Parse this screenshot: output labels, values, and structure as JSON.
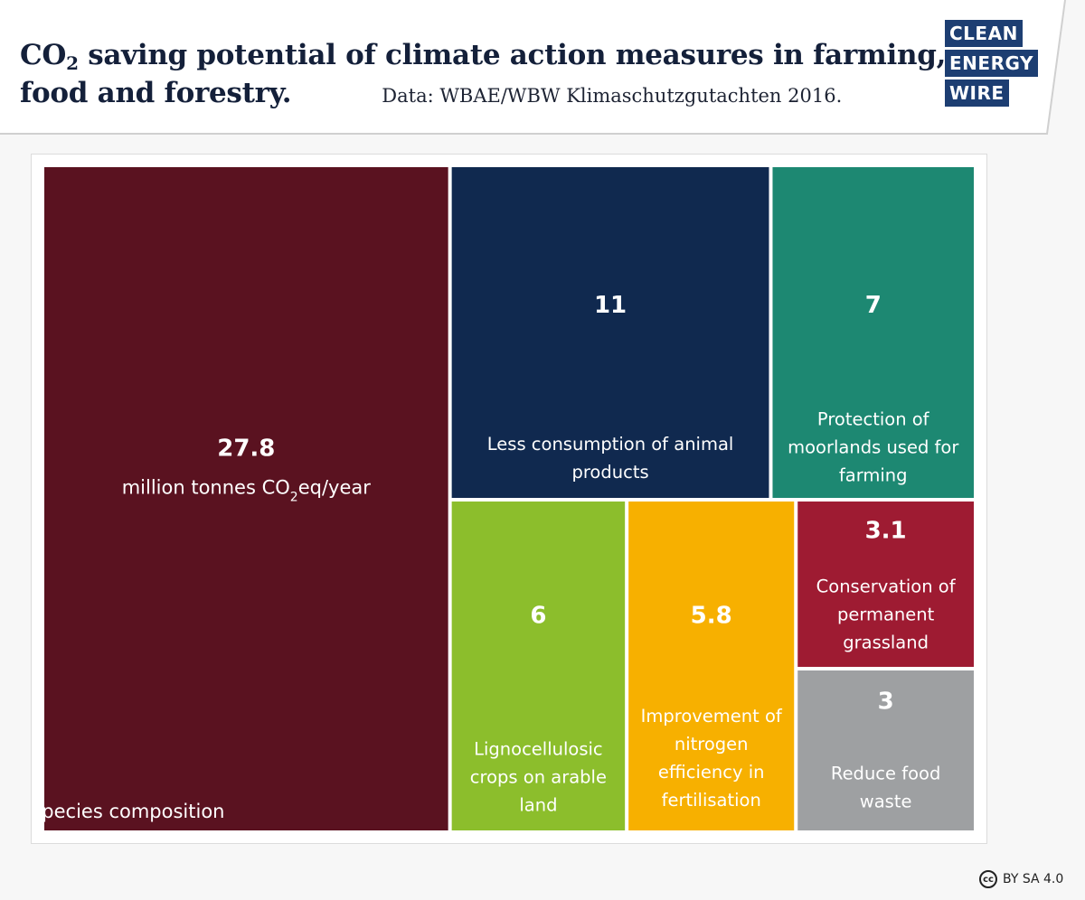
{
  "header": {
    "title_prefix": "CO",
    "title_sub": "2",
    "title_rest": " saving potential of climate action measures in farming,",
    "title_line2": "food and forestry.",
    "source": "Data: WBAE/WBW Klimaschutzgutachten 2016."
  },
  "logo": {
    "line1": "CLEAN",
    "line2": "ENERGY",
    "line3": "WIRE",
    "color": "#1d3e72"
  },
  "license": {
    "icon_text": "cc",
    "text": "BY SA 4.0"
  },
  "chart_data": {
    "type": "treemap",
    "unit_prefix": "million tonnes CO",
    "unit_sub": "2",
    "unit_suffix": "eq/year",
    "items": [
      {
        "label": "Change in tree species composition",
        "value": 27.8,
        "value_text": "27.8",
        "color": "#5a1220"
      },
      {
        "label": "Less consumption of animal products",
        "value": 11,
        "value_text": "11",
        "color": "#10294f"
      },
      {
        "label": "Protection of moorlands used for farming",
        "value": 7,
        "value_text": "7",
        "color": "#1d8872"
      },
      {
        "label": "Lignocellulosic crops on arable land",
        "value": 6,
        "value_text": "6",
        "color": "#8cbe2c"
      },
      {
        "label": "Improvement of nitrogen efficiency in fertilisation",
        "value": 5.8,
        "value_text": "5.8",
        "color": "#f7b000"
      },
      {
        "label": "Conservation of permanent grassland",
        "value": 3.1,
        "value_text": "3.1",
        "color": "#9e1b32"
      },
      {
        "label": "Reduce food waste",
        "value": 3,
        "value_text": "3",
        "color": "#9ea0a2"
      }
    ]
  }
}
